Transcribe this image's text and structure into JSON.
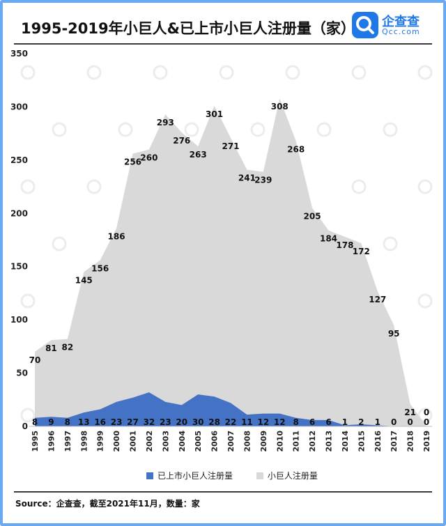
{
  "page": {
    "title": "1995-2019年小巨人&已上市小巨人注册量（家）",
    "source": "Source：企查查，截至2021年11月，数量：家"
  },
  "logo": {
    "cn": "企查查",
    "en": "Qcc.com",
    "icon": "magnifier-q-icon"
  },
  "colors": {
    "frame": "#6aa8f2",
    "listed": "#4472c4",
    "total": "#d9d9d9",
    "brand": "#1f78e8"
  },
  "chart_data": {
    "type": "area",
    "title": "1995-2019年小巨人&已上市小巨人注册量（家）",
    "xlabel": "",
    "ylabel": "",
    "ylim": [
      0,
      350
    ],
    "yticks": [
      0,
      50,
      100,
      150,
      200,
      250,
      300,
      350
    ],
    "grid": false,
    "legend": "bottom",
    "categories": [
      "1995",
      "1996",
      "1997",
      "1998",
      "1999",
      "2000",
      "2001",
      "2002",
      "2003",
      "2004",
      "2005",
      "2006",
      "2007",
      "2008",
      "2009",
      "2010",
      "2011",
      "2012",
      "2013",
      "2014",
      "2015",
      "2016",
      "2017",
      "2018",
      "2019"
    ],
    "series": [
      {
        "name": "小巨人注册量",
        "values": [
          70,
          81,
          82,
          145,
          156,
          186,
          256,
          260,
          293,
          276,
          263,
          301,
          271,
          241,
          239,
          308,
          268,
          205,
          184,
          178,
          172,
          127,
          95,
          21,
          0
        ]
      },
      {
        "name": "已上市小巨人注册量",
        "values": [
          8,
          9,
          8,
          13,
          16,
          23,
          27,
          32,
          23,
          20,
          30,
          28,
          22,
          11,
          12,
          12,
          8,
          6,
          6,
          1,
          2,
          1,
          0,
          0,
          0
        ]
      }
    ]
  }
}
